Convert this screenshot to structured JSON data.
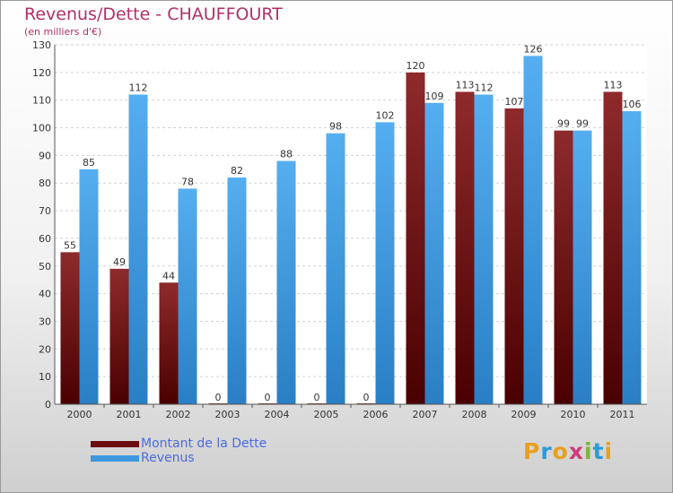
{
  "chart_data": {
    "type": "bar",
    "title": "Revenus/Dette - CHAUFFOURT",
    "subtitle": "(en milliers d'€)",
    "xlabel": "",
    "ylabel": "",
    "ylim": [
      0,
      130
    ],
    "yticks": [
      "0",
      "10",
      "20",
      "30",
      "40",
      "50",
      "60",
      "70",
      "80",
      "90",
      "100",
      "110",
      "120",
      "130"
    ],
    "categories": [
      "2000",
      "2001",
      "2002",
      "2003",
      "2004",
      "2005",
      "2006",
      "2007",
      "2008",
      "2009",
      "2010",
      "2011"
    ],
    "series": [
      {
        "name": "Montant de la Dette",
        "color": "#7b1518",
        "values": [
          55,
          49,
          44,
          0,
          0,
          0,
          0,
          120,
          113,
          107,
          99,
          113
        ]
      },
      {
        "name": "Revenus",
        "color": "#3d98e0",
        "values": [
          85,
          112,
          78,
          82,
          88,
          98,
          102,
          109,
          112,
          126,
          99,
          106
        ]
      }
    ],
    "grid": true,
    "legend": "bottom-left"
  },
  "logo": {
    "letters": [
      {
        "ch": "P",
        "color": "#e8a020"
      },
      {
        "ch": "r",
        "color": "#2a9bd6"
      },
      {
        "ch": "o",
        "color": "#e8a020"
      },
      {
        "ch": "x",
        "color": "#d03a7a"
      },
      {
        "ch": "i",
        "color": "#7ab43a"
      },
      {
        "ch": "t",
        "color": "#2a9bd6"
      },
      {
        "ch": "i",
        "color": "#e8a020"
      }
    ]
  }
}
